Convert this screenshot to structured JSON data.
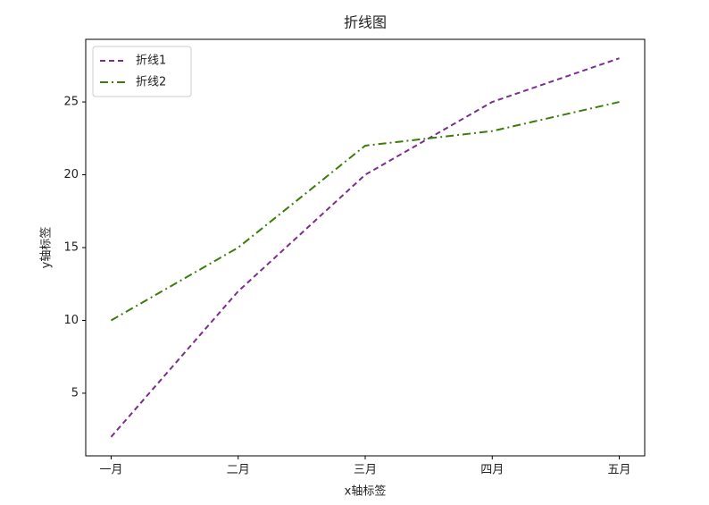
{
  "chart_data": {
    "type": "line",
    "title": "折线图",
    "x_label": "x轴标签",
    "y_label": "y轴标签",
    "categories": [
      "一月",
      "二月",
      "三月",
      "四月",
      "五月"
    ],
    "series": [
      {
        "name": "折线1",
        "color": "#7b2d8e",
        "linestyle": "dashed",
        "values": [
          2,
          12,
          20,
          25,
          28
        ]
      },
      {
        "name": "折线2",
        "color": "#3a7d0a",
        "linestyle": "dashdot",
        "values": [
          10,
          15,
          22,
          23,
          25
        ]
      }
    ],
    "ylim": [
      0.7,
      29.3
    ],
    "yticks": [
      5,
      10,
      15,
      20,
      25
    ],
    "grid": false,
    "legend": "upper left"
  }
}
